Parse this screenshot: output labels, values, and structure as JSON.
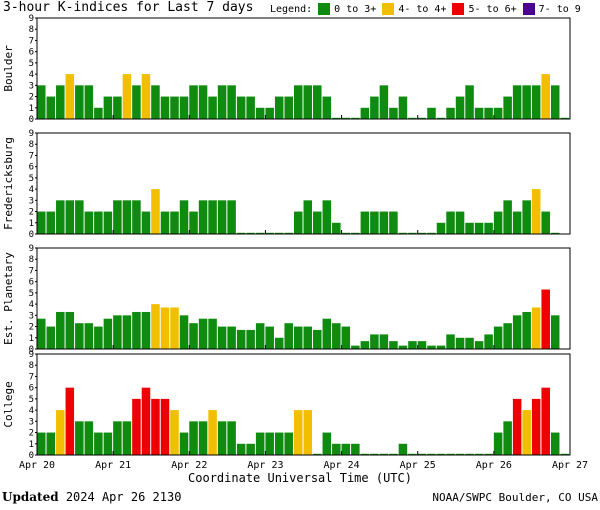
{
  "title": "3-hour K-indices for Last 7 days",
  "legend": {
    "label": "Legend:",
    "items": [
      {
        "label": "0 to 3+",
        "color": "#0f8c0f"
      },
      {
        "label": "4- to 4+",
        "color": "#f2bf00"
      },
      {
        "label": "5- to 6+",
        "color": "#ee0000"
      },
      {
        "label": "7- to 9",
        "color": "#4a0090"
      }
    ]
  },
  "footer": {
    "updated_label": "Updated",
    "updated_value": "2024 Apr 26 2130",
    "credit": "NOAA/SWPC Boulder, CO USA"
  },
  "chart_data": {
    "type": "bar",
    "xlabel": "Coordinate Universal Time (UTC)",
    "x_ticks": [
      "Apr 20",
      "Apr 21",
      "Apr 22",
      "Apr 23",
      "Apr 24",
      "Apr 25",
      "Apr 26",
      "Apr 27"
    ],
    "ylim": [
      0,
      9
    ],
    "y_ticks": [
      "0",
      "1",
      "2",
      "3",
      "4",
      "5",
      "6",
      "7",
      "8",
      "9"
    ],
    "intervals_per_day": 8,
    "panels": [
      {
        "name": "Boulder",
        "values": [
          3,
          2,
          3,
          4,
          3,
          3,
          1,
          2,
          2,
          4,
          3,
          4,
          3,
          2,
          2,
          2,
          3,
          3,
          2,
          3,
          3,
          2,
          2,
          1,
          1,
          2,
          2,
          3,
          3,
          3,
          2,
          0,
          0,
          0,
          1,
          2,
          3,
          1,
          2,
          0,
          0,
          1,
          0,
          1,
          2,
          3,
          1,
          1,
          1,
          2,
          3,
          3,
          3,
          4,
          3,
          0
        ]
      },
      {
        "name": "Fredericksburg",
        "values": [
          2,
          2,
          3,
          3,
          3,
          2,
          2,
          2,
          3,
          3,
          3,
          2,
          4,
          2,
          2,
          3,
          2,
          3,
          3,
          3,
          3,
          0,
          0,
          0,
          0,
          0,
          0,
          2,
          3,
          2,
          3,
          1,
          0,
          0,
          2,
          2,
          2,
          2,
          0,
          0,
          0,
          0,
          1,
          2,
          2,
          1,
          1,
          1,
          2,
          3,
          2,
          3,
          4,
          2,
          0
        ]
      },
      {
        "name": "Est. Planetary",
        "values": [
          2.7,
          2,
          3.3,
          3.3,
          2.3,
          2.3,
          2,
          2.7,
          3,
          3,
          3.3,
          3.3,
          4,
          3.7,
          3.7,
          3,
          2.3,
          2.7,
          2.7,
          2,
          2,
          1.7,
          1.7,
          2.3,
          2,
          1,
          2.3,
          2,
          2,
          1.7,
          2.7,
          2.3,
          2,
          0.3,
          0.7,
          1.3,
          1.3,
          0.7,
          0.3,
          0.7,
          0.7,
          0.3,
          0.3,
          1.3,
          1,
          1,
          0.7,
          1.3,
          2,
          2.3,
          3,
          3.3,
          3.7,
          5.3,
          3
        ]
      },
      {
        "name": "College",
        "values": [
          2,
          2,
          4,
          6,
          3,
          3,
          2,
          2,
          3,
          3,
          5,
          6,
          5,
          5,
          4,
          2,
          3,
          3,
          4,
          3,
          3,
          1,
          1,
          2,
          2,
          2,
          2,
          4,
          4,
          0,
          2,
          1,
          1,
          1,
          0,
          0,
          0,
          0,
          1,
          0,
          0,
          0,
          0,
          0,
          0,
          0,
          0,
          0,
          2,
          3,
          5,
          4,
          5,
          6,
          2,
          0
        ]
      }
    ]
  }
}
